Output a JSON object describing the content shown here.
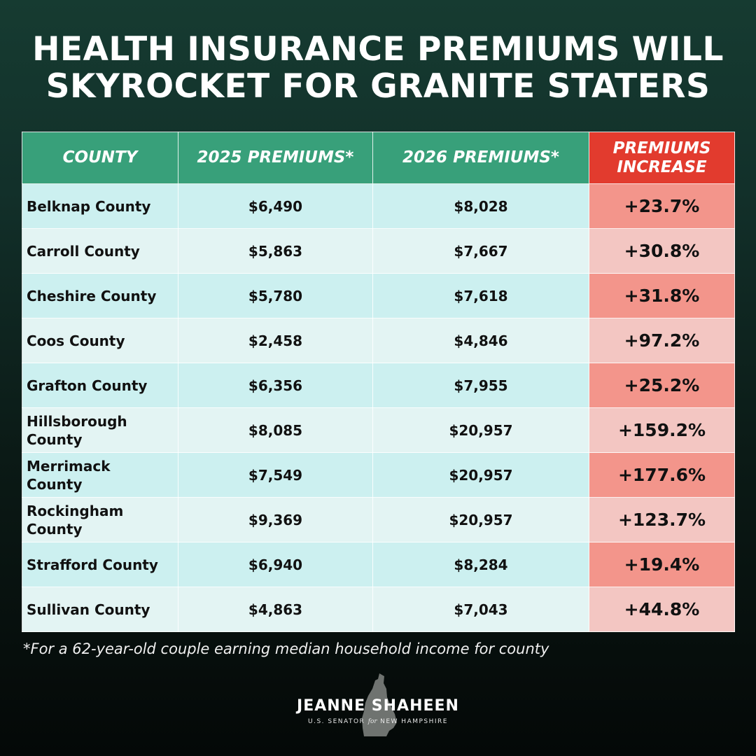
{
  "title": {
    "line1": "HEALTH INSURANCE PREMIUMS WILL",
    "line2": "SKYROCKET FOR GRANITE STATERS"
  },
  "table": {
    "headers": {
      "county": "COUNTY",
      "p2025": "2025 PREMIUMS*",
      "p2026": "2026 PREMIUMS*",
      "increase_line1": "PREMIUMS",
      "increase_line2": "INCREASE"
    },
    "rows": [
      {
        "county_line1": "Belknap County",
        "county_line2": "",
        "p2025": "$6,490",
        "p2026": "$8,028",
        "increase": "+23.7%"
      },
      {
        "county_line1": "Carroll County",
        "county_line2": "",
        "p2025": "$5,863",
        "p2026": "$7,667",
        "increase": "+30.8%"
      },
      {
        "county_line1": "Cheshire County",
        "county_line2": "",
        "p2025": "$5,780",
        "p2026": "$7,618",
        "increase": "+31.8%"
      },
      {
        "county_line1": "Coos County",
        "county_line2": "",
        "p2025": "$2,458",
        "p2026": "$4,846",
        "increase": "+97.2%"
      },
      {
        "county_line1": "Grafton County",
        "county_line2": "",
        "p2025": "$6,356",
        "p2026": "$7,955",
        "increase": "+25.2%"
      },
      {
        "county_line1": "Hillsborough",
        "county_line2": "County",
        "p2025": "$8,085",
        "p2026": "$20,957",
        "increase": "+159.2%"
      },
      {
        "county_line1": "Merrimack",
        "county_line2": "County",
        "p2025": "$7,549",
        "p2026": "$20,957",
        "increase": "+177.6%"
      },
      {
        "county_line1": "Rockingham",
        "county_line2": "County",
        "p2025": "$9,369",
        "p2026": "$20,957",
        "increase": "+123.7%"
      },
      {
        "county_line1": "Strafford County",
        "county_line2": "",
        "p2025": "$6,940",
        "p2026": "$8,284",
        "increase": "+19.4%"
      },
      {
        "county_line1": "Sullivan County",
        "county_line2": "",
        "p2025": "$4,863",
        "p2026": "$7,043",
        "increase": "+44.8%"
      }
    ]
  },
  "footnote": "*For a 62-year-old couple earning median household income for county",
  "logo": {
    "name": "JEANNE SHAHEEN",
    "sub_pre": "U.S. SENATOR",
    "sub_for": "for",
    "sub_post": "NEW HAMPSHIRE",
    "icon": "new-hampshire-state-silhouette"
  },
  "colors": {
    "header_green": "#38a07a",
    "header_red": "#e23b2e",
    "row_teal": "#ccf0f0",
    "row_light": "#e3f4f3",
    "pct_dark": "#f3958b",
    "pct_light": "#f3c6c2"
  }
}
